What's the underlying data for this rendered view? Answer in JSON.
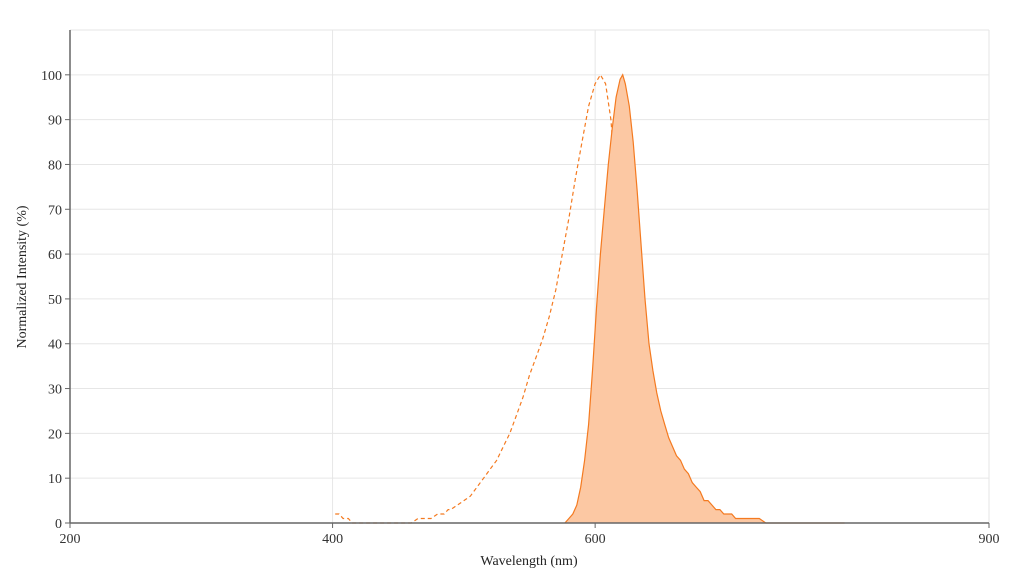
{
  "chart_data": {
    "type": "area",
    "xlabel": "Wavelength (nm)",
    "ylabel": "Normalized Intensity (%)",
    "xlim": [
      200,
      900
    ],
    "ylim": [
      0,
      110
    ],
    "x_ticks": [
      200,
      400,
      600,
      900
    ],
    "y_ticks": [
      0,
      10,
      20,
      30,
      40,
      50,
      60,
      70,
      80,
      90,
      100
    ],
    "grid": true,
    "colors": {
      "excitation": "#f47a20",
      "emission_line": "#f47a20",
      "emission_fill": "#fcc8a3"
    },
    "series": [
      {
        "style": "dashed-line",
        "points": [
          [
            402,
            2
          ],
          [
            405,
            2
          ],
          [
            408,
            1
          ],
          [
            412,
            1
          ],
          [
            415,
            0
          ],
          [
            420,
            0
          ],
          [
            430,
            0
          ],
          [
            440,
            0
          ],
          [
            450,
            0
          ],
          [
            460,
            0
          ],
          [
            465,
            1
          ],
          [
            470,
            1
          ],
          [
            475,
            1
          ],
          [
            480,
            2
          ],
          [
            485,
            2
          ],
          [
            488,
            3
          ],
          [
            490,
            3
          ],
          [
            495,
            4
          ],
          [
            500,
            5
          ],
          [
            505,
            6
          ],
          [
            510,
            8
          ],
          [
            515,
            10
          ],
          [
            520,
            12
          ],
          [
            525,
            14
          ],
          [
            530,
            17
          ],
          [
            535,
            20
          ],
          [
            540,
            24
          ],
          [
            545,
            28
          ],
          [
            550,
            33
          ],
          [
            555,
            37
          ],
          [
            560,
            41
          ],
          [
            565,
            46
          ],
          [
            570,
            52
          ],
          [
            575,
            60
          ],
          [
            580,
            68
          ],
          [
            585,
            77
          ],
          [
            590,
            85
          ],
          [
            595,
            93
          ],
          [
            600,
            98
          ],
          [
            604,
            100
          ],
          [
            608,
            98
          ],
          [
            612,
            90
          ],
          [
            616,
            75
          ],
          [
            620,
            60
          ],
          [
            624,
            45
          ],
          [
            628,
            30
          ],
          [
            632,
            18
          ],
          [
            636,
            10
          ],
          [
            638,
            0
          ]
        ]
      },
      {
        "style": "filled-area",
        "points": [
          [
            577,
            0
          ],
          [
            580,
            1
          ],
          [
            583,
            2
          ],
          [
            586,
            4
          ],
          [
            589,
            8
          ],
          [
            592,
            14
          ],
          [
            595,
            22
          ],
          [
            598,
            34
          ],
          [
            601,
            48
          ],
          [
            604,
            60
          ],
          [
            607,
            70
          ],
          [
            610,
            80
          ],
          [
            613,
            88
          ],
          [
            616,
            95
          ],
          [
            619,
            99
          ],
          [
            621,
            100
          ],
          [
            623,
            98
          ],
          [
            626,
            93
          ],
          [
            629,
            85
          ],
          [
            632,
            74
          ],
          [
            635,
            62
          ],
          [
            638,
            50
          ],
          [
            641,
            40
          ],
          [
            644,
            34
          ],
          [
            647,
            29
          ],
          [
            650,
            25
          ],
          [
            653,
            22
          ],
          [
            656,
            19
          ],
          [
            659,
            17
          ],
          [
            662,
            15
          ],
          [
            665,
            14
          ],
          [
            668,
            12
          ],
          [
            671,
            11
          ],
          [
            674,
            9
          ],
          [
            677,
            8
          ],
          [
            680,
            7
          ],
          [
            683,
            5
          ],
          [
            686,
            5
          ],
          [
            689,
            4
          ],
          [
            692,
            3
          ],
          [
            695,
            3
          ],
          [
            698,
            2
          ],
          [
            701,
            2
          ],
          [
            704,
            2
          ],
          [
            707,
            1
          ],
          [
            710,
            1
          ],
          [
            715,
            1
          ],
          [
            720,
            1
          ],
          [
            725,
            1
          ],
          [
            730,
            0
          ],
          [
            740,
            0
          ],
          [
            760,
            0
          ],
          [
            780,
            0
          ],
          [
            790,
            0
          ]
        ]
      }
    ]
  }
}
